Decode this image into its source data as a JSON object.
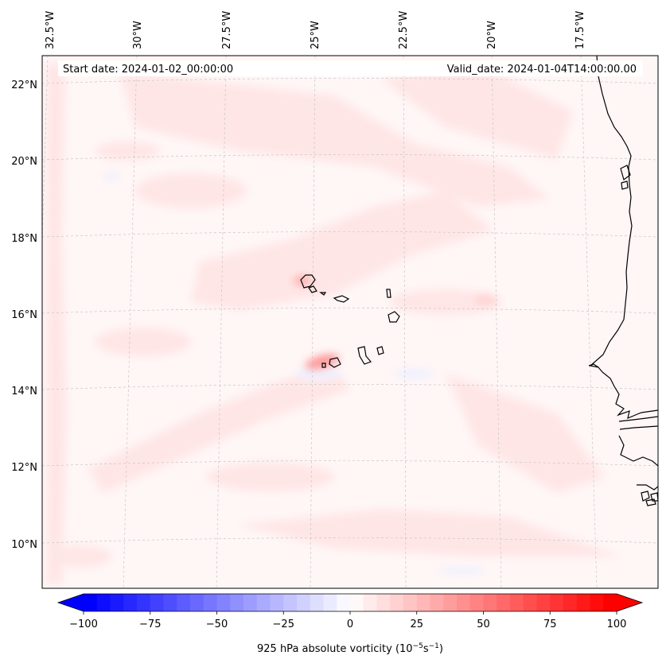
{
  "map": {
    "projection": "lambert-conformal",
    "extent_lon": [
      -33.0,
      -15.5
    ],
    "extent_lat": [
      9.0,
      22.5
    ],
    "gridlines": true,
    "coastline_color": "#000000",
    "lon_tick_labels": [
      "32.5°W",
      "30°W",
      "27.5°W",
      "25°W",
      "22.5°W",
      "20°W",
      "17.5°W"
    ],
    "lat_tick_labels": [
      "22°N",
      "20°N",
      "18°N",
      "16°N",
      "14°N",
      "12°N",
      "10°N"
    ],
    "start_date": "Start date: 2024-01-02_00:00:00",
    "valid_date": "Valid_date: 2024-01-04T14:00:00.00"
  },
  "colorbar": {
    "label_text": "925 hPa absolute vorticity (10",
    "label_exp1": "−5",
    "label_mid": "s",
    "label_exp2": "−1",
    "label_close": ")",
    "vmin": -100,
    "vmax": 100,
    "levels": 41,
    "extend": "both",
    "colormap": "bwr",
    "low_color": "#0000ff",
    "mid_color": "#ffffff",
    "high_color": "#ff0000",
    "tick_labels": [
      "−100",
      "−75",
      "−50",
      "−25",
      "0",
      "25",
      "50",
      "75",
      "100"
    ]
  },
  "field": {
    "background_color": "#fff6f6",
    "band_color": "#ffe6e6",
    "blob_color": "#ffd6d6",
    "negative_color": "#eef0ff",
    "strong_color": "#ff8c8c"
  }
}
